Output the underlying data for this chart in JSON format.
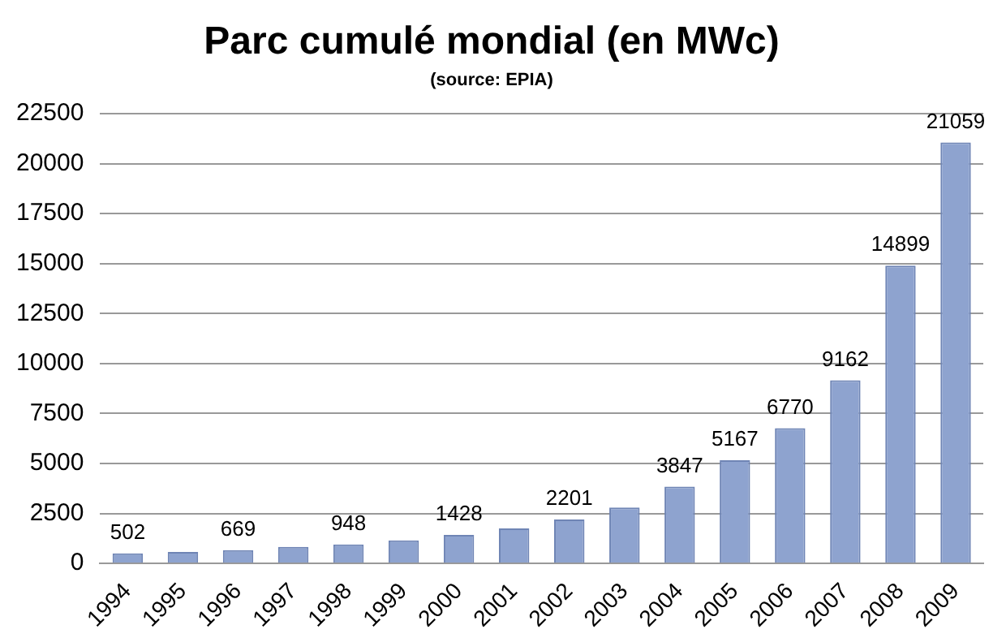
{
  "chart_data": {
    "type": "bar",
    "title": "Parc cumulé mondial (en MWc)",
    "subtitle": "(source: EPIA)",
    "categories": [
      "1994",
      "1995",
      "1996",
      "1997",
      "1998",
      "1999",
      "2000",
      "2001",
      "2002",
      "2003",
      "2004",
      "2005",
      "2006",
      "2007",
      "2008",
      "2009"
    ],
    "values": [
      502,
      580,
      669,
      830,
      948,
      1150,
      1428,
      1750,
      2201,
      2800,
      3847,
      5167,
      6770,
      9162,
      14899,
      21059
    ],
    "value_labels": [
      "502",
      null,
      "669",
      null,
      "948",
      null,
      "1428",
      null,
      "2201",
      null,
      "3847",
      "5167",
      "6770",
      "9162",
      "14899",
      "21059"
    ],
    "color": "#8ea3cf",
    "ylim": [
      0,
      22500
    ],
    "yticks": [
      0,
      2500,
      5000,
      7500,
      10000,
      12500,
      15000,
      17500,
      20000,
      22500
    ],
    "grid": "y",
    "legend": false
  }
}
